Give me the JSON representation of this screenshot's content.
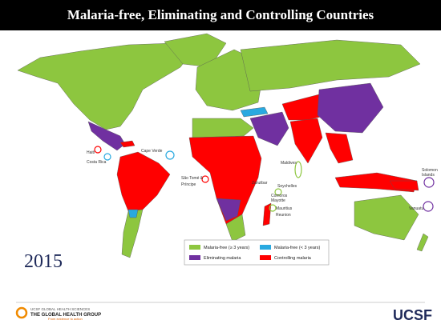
{
  "header": {
    "title": "Malaria-free, Eliminating and Controlling Countries"
  },
  "year": "2015",
  "legend": [
    {
      "label": "Malaria-free (≥ 3 years)",
      "color": "#8dc63f"
    },
    {
      "label": "Malaria-free (< 3 years)",
      "color": "#29a9e0"
    },
    {
      "label": "Eliminating malaria",
      "color": "#7030a0"
    },
    {
      "label": "Controlling malaria",
      "color": "#ff0000"
    }
  ],
  "map_labels": [
    "Haiti",
    "Costa Rica",
    "Cape Verde",
    "São Tomé &",
    "Príncipe",
    "Maldives",
    "Zanzibar",
    "Seychelles",
    "Comoros",
    "Mayotte",
    "Mauritius",
    "Reunion",
    "Solomon",
    "Islands",
    "Vanuatu"
  ],
  "footer": {
    "org": "UCSF GLOBAL HEALTH SCIENCES",
    "group": "THE GLOBAL HEALTH GROUP",
    "tagline": "From evidence to action",
    "logo": "UCSF"
  }
}
